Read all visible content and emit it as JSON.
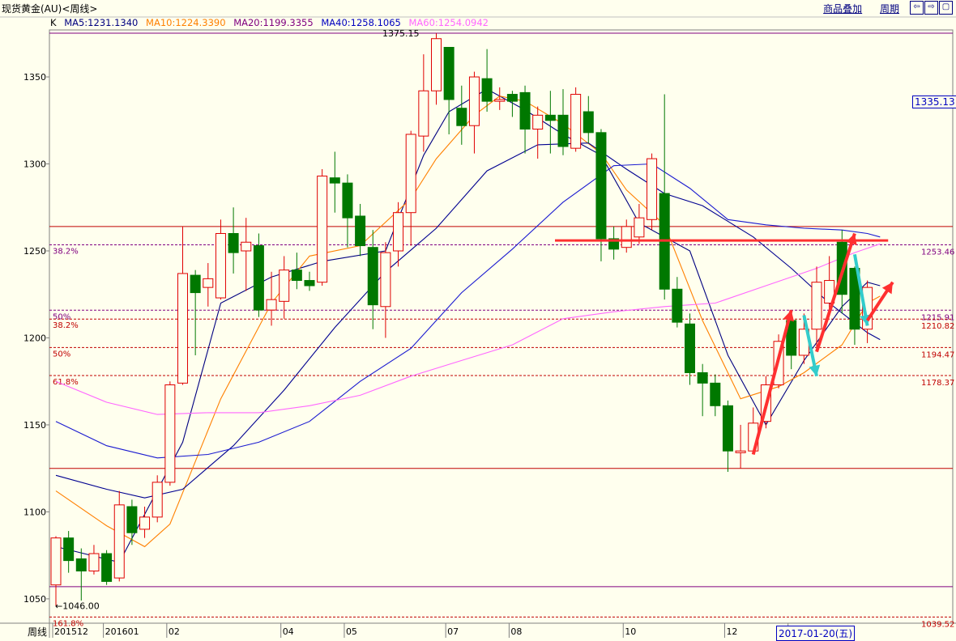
{
  "header": {
    "title": "现货黄金(AU)<周线>",
    "link_overlay": "商品叠加",
    "link_period": "周期",
    "nav_buttons": [
      "⇦",
      "⇨",
      "▢"
    ]
  },
  "ma_legend": {
    "k": "K",
    "ma5": "MA5:1231.1340",
    "ma10": "MA10:1224.3390",
    "ma20": "MA20:1199.3355",
    "ma40": "MA40:1258.1065",
    "ma60": "MA60:1254.0942",
    "colors": {
      "ma5": "#000080",
      "ma10": "#ff8000",
      "ma20": "#800080",
      "ma40": "#0000c0",
      "ma60": "#ff66ff"
    }
  },
  "price_box": "1335.13",
  "date_box": "2017-01-20(五)",
  "period_label": "周线",
  "chart_data": {
    "type": "candlestick",
    "ylim": [
      1036,
      1377
    ],
    "y_ticks": [
      1050,
      1100,
      1150,
      1200,
      1250,
      1300,
      1350
    ],
    "x_tick_labels": [
      {
        "label": "201512",
        "index": 0
      },
      {
        "label": "201601",
        "index": 4
      },
      {
        "label": "02",
        "index": 9
      },
      {
        "label": "04",
        "index": 18
      },
      {
        "label": "05",
        "index": 23
      },
      {
        "label": "07",
        "index": 31
      },
      {
        "label": "08",
        "index": 36
      },
      {
        "label": "10",
        "index": 45
      },
      {
        "label": "12",
        "index": 53
      },
      {
        "label": "201701",
        "index": 58
      }
    ],
    "annotations": {
      "high": "1375.15",
      "low": "←1046.00"
    },
    "fib_levels": [
      {
        "label": "38.2%",
        "price": 1253.46,
        "value_label": "1253.46",
        "side": "left",
        "color": "#800080"
      },
      {
        "label": "50%",
        "price": 1215.91,
        "value_label": "1215.91",
        "side": "left",
        "color": "#800080"
      },
      {
        "label": "38.2%",
        "price": 1210.82,
        "value_label": "1210.82",
        "side": "left",
        "color": "#c00000"
      },
      {
        "label": "50%",
        "price": 1194.47,
        "value_label": "1194.47",
        "side": "left",
        "color": "#c00000"
      },
      {
        "label": "61.8%",
        "price": 1178.37,
        "value_label": "1178.37",
        "side": "left",
        "color": "#c00000"
      },
      {
        "label": "161.8%",
        "price": 1039.52,
        "value_label": "1039.52",
        "side": "left",
        "color": "#c00000"
      }
    ],
    "horizontal_lines": [
      {
        "price": 1375.15,
        "color": "#800080"
      },
      {
        "price": 1264,
        "color": "#c00000"
      },
      {
        "price": 1125,
        "color": "#c00000"
      },
      {
        "price": 1057,
        "color": "#800080"
      }
    ],
    "candles": [
      [
        1058,
        1085,
        1046,
        1086
      ],
      [
        1085,
        1072,
        1065,
        1089
      ],
      [
        1073,
        1066,
        1049,
        1079
      ],
      [
        1066,
        1076,
        1064,
        1081
      ],
      [
        1076,
        1060,
        1058,
        1078
      ],
      [
        1062,
        1104,
        1060,
        1112
      ],
      [
        1103,
        1088,
        1081,
        1107
      ],
      [
        1090,
        1097,
        1085,
        1103
      ],
      [
        1097,
        1117,
        1094,
        1121
      ],
      [
        1117,
        1173,
        1115,
        1175
      ],
      [
        1174,
        1237,
        1173,
        1264
      ],
      [
        1236,
        1226,
        1190,
        1239
      ],
      [
        1229,
        1234,
        1218,
        1243
      ],
      [
        1223,
        1260,
        1222,
        1268
      ],
      [
        1260,
        1249,
        1237,
        1275
      ],
      [
        1250,
        1255,
        1227,
        1269
      ],
      [
        1253,
        1216,
        1212,
        1260
      ],
      [
        1216,
        1222,
        1207,
        1238
      ],
      [
        1221,
        1239,
        1211,
        1247
      ],
      [
        1239,
        1233,
        1228,
        1249
      ],
      [
        1233,
        1230,
        1227,
        1238
      ],
      [
        1232,
        1293,
        1230,
        1297
      ],
      [
        1292,
        1289,
        1272,
        1307
      ],
      [
        1289,
        1269,
        1252,
        1294
      ],
      [
        1270,
        1253,
        1247,
        1277
      ],
      [
        1252,
        1219,
        1205,
        1262
      ],
      [
        1218,
        1249,
        1200,
        1255
      ],
      [
        1250,
        1272,
        1241,
        1278
      ],
      [
        1272,
        1317,
        1253,
        1319
      ],
      [
        1316,
        1342,
        1307,
        1363
      ],
      [
        1342,
        1372,
        1334,
        1375
      ],
      [
        1367,
        1337,
        1317,
        1367
      ],
      [
        1332,
        1322,
        1311,
        1345
      ],
      [
        1322,
        1350,
        1306,
        1353
      ],
      [
        1349,
        1336,
        1330,
        1366
      ],
      [
        1336,
        1337,
        1331,
        1344
      ],
      [
        1340,
        1336,
        1327,
        1342
      ],
      [
        1341,
        1320,
        1306,
        1345
      ],
      [
        1320,
        1328,
        1303,
        1333
      ],
      [
        1328,
        1325,
        1306,
        1342
      ],
      [
        1328,
        1310,
        1305,
        1343
      ],
      [
        1309,
        1340,
        1307,
        1344
      ],
      [
        1330,
        1318,
        1312,
        1339
      ],
      [
        1318,
        1257,
        1244,
        1320
      ],
      [
        1257,
        1251,
        1245,
        1264
      ],
      [
        1252,
        1264,
        1249,
        1268
      ],
      [
        1258,
        1269,
        1254,
        1277
      ],
      [
        1268,
        1303,
        1262,
        1306
      ],
      [
        1283,
        1228,
        1222,
        1340
      ],
      [
        1228,
        1209,
        1206,
        1235
      ],
      [
        1208,
        1180,
        1173,
        1214
      ],
      [
        1180,
        1174,
        1155,
        1185
      ],
      [
        1174,
        1161,
        1155,
        1179
      ],
      [
        1161,
        1135,
        1123,
        1164
      ],
      [
        1134,
        1135,
        1125,
        1150
      ],
      [
        1135,
        1151,
        1133,
        1160
      ],
      [
        1152,
        1173,
        1148,
        1178
      ],
      [
        1173,
        1198,
        1171,
        1202
      ],
      [
        1210,
        1190,
        1182,
        1212
      ],
      [
        1190,
        1205,
        1185,
        1214
      ],
      [
        1205,
        1232,
        1193,
        1241
      ],
      [
        1220,
        1233,
        1213,
        1247
      ],
      [
        1255,
        1225,
        1214,
        1262
      ],
      [
        1240,
        1205,
        1196,
        1241
      ],
      [
        1205,
        1229,
        1197,
        1233
      ]
    ],
    "ma_series": [
      {
        "name": "MA5",
        "color": "#000080",
        "x": [
          0,
          5,
          10,
          13,
          17,
          21,
          26,
          29,
          31,
          34,
          37,
          40,
          43,
          46,
          50,
          53,
          56,
          59,
          62,
          64,
          65
        ],
        "y": [
          1080,
          1071,
          1140,
          1220,
          1235,
          1244,
          1250,
          1305,
          1330,
          1343,
          1331,
          1317,
          1305,
          1266,
          1250,
          1190,
          1150,
          1187,
          1218,
          1232,
          1230
        ]
      },
      {
        "name": "MA10",
        "color": "#ff8000",
        "x": [
          0,
          4,
          7,
          9,
          13,
          17,
          20,
          24,
          28,
          30,
          33,
          35,
          37,
          40,
          43,
          45,
          48,
          51,
          54,
          57,
          59,
          62,
          64,
          65
        ],
        "y": [
          1112,
          1092,
          1080,
          1093,
          1165,
          1220,
          1247,
          1253,
          1280,
          1303,
          1328,
          1339,
          1336,
          1323,
          1306,
          1285,
          1265,
          1210,
          1165,
          1172,
          1180,
          1196,
          1220,
          1224
        ]
      },
      {
        "name": "MA20",
        "color": "#000090",
        "x": [
          0,
          4,
          7,
          10,
          14,
          18,
          22,
          26,
          30,
          34,
          38,
          42,
          45,
          48,
          51,
          55,
          58,
          61,
          64,
          65
        ],
        "y": [
          1121,
          1113,
          1108,
          1113,
          1138,
          1170,
          1206,
          1238,
          1263,
          1296,
          1311,
          1312,
          1297,
          1283,
          1276,
          1258,
          1240,
          1220,
          1203,
          1199
        ]
      },
      {
        "name": "MA40",
        "color": "#1a1ad0",
        "x": [
          0,
          4,
          8,
          12,
          16,
          20,
          24,
          28,
          32,
          36,
          40,
          44,
          47,
          50,
          53,
          56,
          59,
          62,
          64,
          65
        ],
        "y": [
          1152,
          1138,
          1131,
          1133,
          1140,
          1152,
          1175,
          1194,
          1226,
          1251,
          1278,
          1299,
          1300,
          1286,
          1268,
          1265,
          1263,
          1262,
          1260,
          1258
        ]
      },
      {
        "name": "MA60",
        "color": "#ff66ff",
        "x": [
          0,
          4,
          8,
          12,
          16,
          20,
          24,
          28,
          32,
          36,
          40,
          44,
          48,
          52,
          56,
          60,
          63,
          65
        ],
        "y": [
          1175,
          1163,
          1156,
          1157,
          1157,
          1161,
          1167,
          1178,
          1187,
          1196,
          1211,
          1215,
          1218,
          1220,
          1230,
          1240,
          1249,
          1254
        ]
      }
    ],
    "drawn_lines": [
      {
        "kind": "hline",
        "color": "#ff3030",
        "price": 1256,
        "from_index": 40,
        "to_index": 65
      },
      {
        "kind": "arrow",
        "color": "#ff3030",
        "from": [
          55,
          1133
        ],
        "to": [
          58,
          1216
        ]
      },
      {
        "kind": "arrow",
        "color": "#33cccc",
        "from": [
          59,
          1213
        ],
        "to": [
          60,
          1178
        ]
      },
      {
        "kind": "arrow",
        "color": "#ff3030",
        "from": [
          60,
          1192
        ],
        "to": [
          63,
          1260
        ]
      },
      {
        "kind": "arrow",
        "color": "#33cccc",
        "from": [
          63,
          1248
        ],
        "to": [
          64,
          1207
        ]
      },
      {
        "kind": "arrow",
        "color": "#ff3030",
        "from": [
          64,
          1210
        ],
        "to": [
          66,
          1232
        ]
      }
    ]
  }
}
